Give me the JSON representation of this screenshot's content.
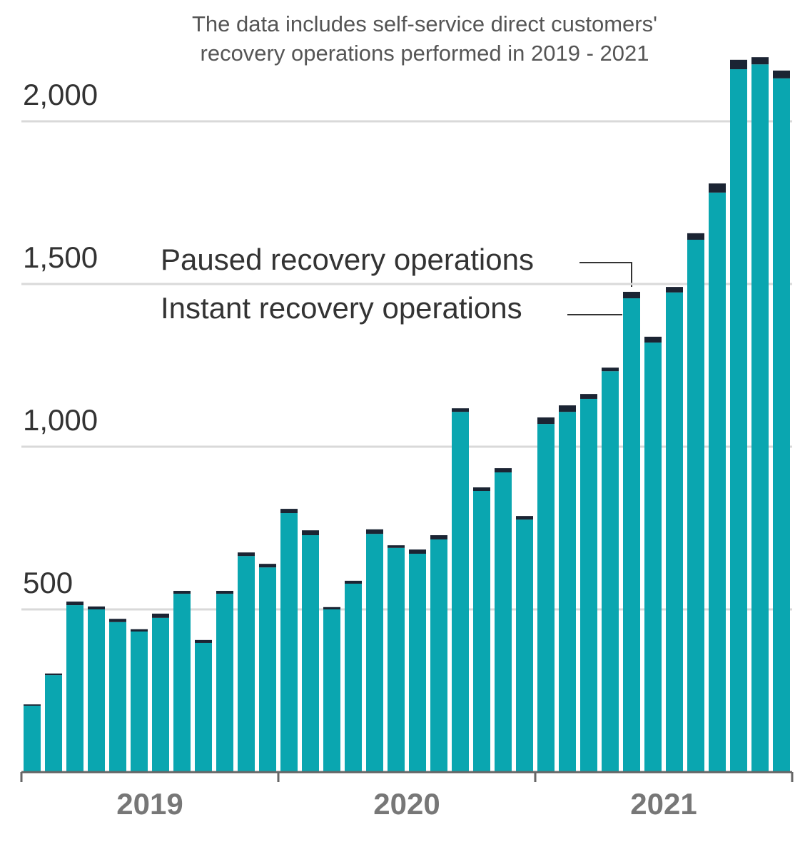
{
  "chart_data": {
    "type": "stacked_bar",
    "note": [
      "The data includes self-service direct customers'",
      "recovery operations performed in 2019 - 2021"
    ],
    "categories": [
      null,
      null,
      null,
      null,
      null,
      null,
      null,
      null,
      null,
      null,
      null,
      null,
      null,
      null,
      null,
      null,
      null,
      null,
      null,
      null,
      null,
      null,
      null,
      null,
      null,
      null,
      null,
      null,
      null,
      null,
      null,
      null,
      null,
      null,
      null,
      null
    ],
    "year_labels": [
      "2019",
      "2020",
      "2021"
    ],
    "series": [
      {
        "name": "Instant recovery operations",
        "color": "#0aa6b0",
        "values": [
          204,
          298,
          513,
          500,
          461,
          432,
          474,
          548,
          397,
          548,
          664,
          629,
          796,
          728,
          500,
          579,
          732,
          689,
          671,
          715,
          1107,
          864,
          921,
          776,
          1070,
          1107,
          1147,
          1232,
          1456,
          1320,
          1474,
          1636,
          1781,
          2160,
          2175,
          2132
        ]
      },
      {
        "name": "Paused recovery operations",
        "color": "#1b2433",
        "values": [
          4,
          5,
          11,
          9,
          10,
          7,
          13,
          9,
          9,
          9,
          11,
          11,
          13,
          15,
          7,
          9,
          14,
          8,
          13,
          13,
          11,
          11,
          13,
          11,
          20,
          20,
          15,
          11,
          20,
          18,
          17,
          20,
          28,
          29,
          22,
          24
        ]
      }
    ],
    "ylim": [
      0,
      2250
    ],
    "yticks": [
      500,
      {
        "value": 1000,
        "label": "1,000"
      },
      {
        "value": 1500,
        "label": "1,500"
      },
      {
        "value": 2000,
        "label": "2,000"
      }
    ],
    "grid": true
  }
}
